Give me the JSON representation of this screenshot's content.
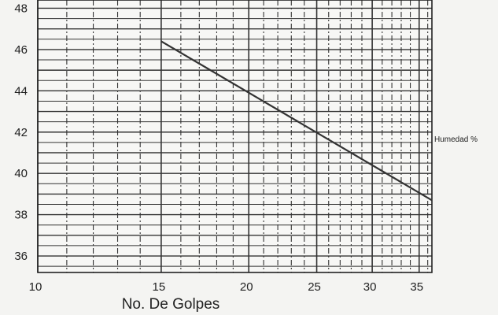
{
  "chart_data": {
    "type": "line",
    "title": "",
    "xlabel": "No. De Golpes",
    "ylabel": "",
    "x_scale": "log",
    "xlim": [
      10,
      36.5
    ],
    "ylim": [
      35.2,
      48.4
    ],
    "x_ticks": [
      10,
      15,
      20,
      25,
      30,
      35
    ],
    "y_ticks": [
      36,
      38,
      40,
      42,
      44,
      46,
      48
    ],
    "grid": true,
    "legend_position": "right",
    "series": [
      {
        "name": "Humedad %",
        "x": [
          15,
          36.5
        ],
        "y": [
          46.4,
          38.7
        ],
        "color": "#333333"
      }
    ]
  }
}
